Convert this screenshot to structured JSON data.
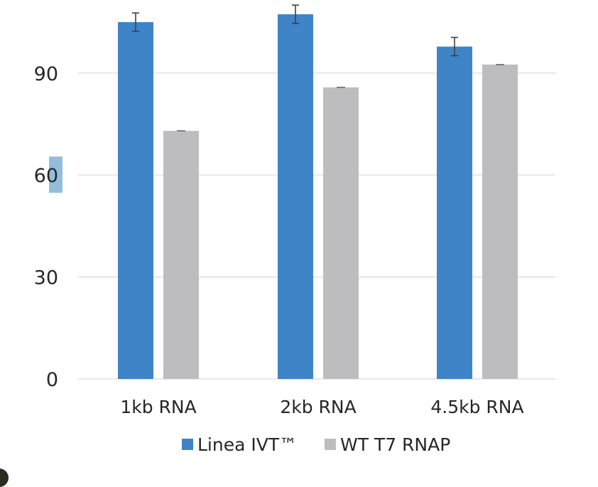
{
  "colors": {
    "series_primary": "#3f84c6",
    "series_secondary": "#bdbdc0",
    "gridline": "#d9d9d9",
    "error_bar": "#404040",
    "highlight": "#7fb3d5"
  },
  "chart_data": {
    "type": "bar",
    "categories": [
      "1kb RNA",
      "2kb RNA",
      "4.5kb RNA"
    ],
    "series": [
      {
        "name": "Linea IVT™",
        "values": [
          105,
          107.3,
          97.8
        ],
        "errors": [
          2.7,
          2.7,
          2.7
        ]
      },
      {
        "name": "WT T7 RNAP",
        "values": [
          73,
          85.8,
          92.5
        ],
        "errors": [
          0,
          0,
          0
        ]
      }
    ],
    "yticks": [
      "0",
      "30",
      "60",
      "90"
    ],
    "ylim": [
      0,
      112
    ],
    "grid": true,
    "legend": "bottom",
    "title": "",
    "xlabel": "",
    "ylabel": ""
  }
}
